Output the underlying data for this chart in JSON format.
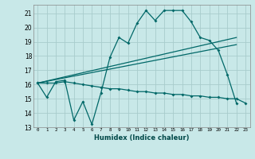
{
  "background_color": "#c8e8e8",
  "grid_color": "#a8cccc",
  "line_color": "#006868",
  "xlabel": "Humidex (Indice chaleur)",
  "xlim": [
    -0.5,
    23.5
  ],
  "ylim": [
    13,
    21.6
  ],
  "yticks": [
    13,
    14,
    15,
    16,
    17,
    18,
    19,
    20,
    21
  ],
  "xticks": [
    0,
    1,
    2,
    3,
    4,
    5,
    6,
    7,
    8,
    9,
    10,
    11,
    12,
    13,
    14,
    15,
    16,
    17,
    18,
    19,
    20,
    21,
    22,
    23
  ],
  "series1_x": [
    0,
    1,
    2,
    3,
    4,
    5,
    6,
    7,
    8,
    9,
    10,
    11,
    12,
    13,
    14,
    15,
    16,
    17,
    18,
    19,
    20,
    21,
    22
  ],
  "series1_y": [
    16.1,
    15.1,
    16.2,
    16.3,
    13.5,
    14.8,
    13.2,
    15.4,
    17.9,
    19.3,
    18.9,
    20.3,
    21.2,
    20.5,
    21.2,
    21.2,
    21.2,
    20.4,
    19.3,
    19.1,
    18.4,
    16.7,
    14.7
  ],
  "series2_x": [
    0,
    1,
    2,
    3,
    4,
    5,
    6,
    7,
    8,
    9,
    10,
    11,
    12,
    13,
    14,
    15,
    16,
    17,
    18,
    19,
    20,
    21,
    22,
    23
  ],
  "series2_y": [
    16.1,
    16.1,
    16.1,
    16.2,
    16.1,
    16.0,
    15.9,
    15.8,
    15.7,
    15.7,
    15.6,
    15.5,
    15.5,
    15.4,
    15.4,
    15.3,
    15.3,
    15.2,
    15.2,
    15.1,
    15.1,
    15.0,
    15.0,
    14.7
  ],
  "series3_x": [
    0,
    22
  ],
  "series3_y": [
    16.1,
    19.3
  ],
  "series4_x": [
    0,
    22
  ],
  "series4_y": [
    16.1,
    18.8
  ]
}
